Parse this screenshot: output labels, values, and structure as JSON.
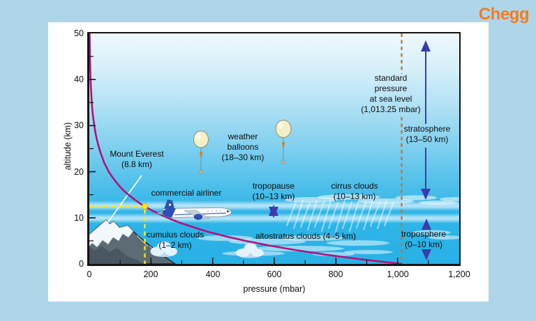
{
  "brand": {
    "logo_text": "Chegg",
    "logo_color": "#f47b20"
  },
  "axes": {
    "x_label": "pressure (mbar)",
    "y_label": "altitude (km)",
    "x_ticks": [
      "0",
      "200",
      "400",
      "600",
      "800",
      "1,000",
      "1,200"
    ],
    "y_ticks": [
      "50",
      "40",
      "30",
      "20",
      "10",
      "0"
    ]
  },
  "annotations": {
    "mount_everest": "Mount Everest\n(8.8 km)",
    "weather_balloons": "weather\nballoons\n(18–30 km)",
    "commercial_airliner": "commercial airliner",
    "tropopause": "tropopause\n(10–13 km)",
    "cirrus_clouds": "cirrus clouds\n(10–13 km)",
    "altostratus_clouds": "altostratus clouds (4–5 km)",
    "cumulus_clouds": "cumulus clouds\n(1–2 km)",
    "standard_pressure": "standard\npressure\nat sea level\n(1,013.25 mbar)",
    "stratosphere": "stratosphere\n(13–50 km)",
    "troposphere": "troposphere\n(0–10 km)"
  },
  "chart_data": {
    "type": "line",
    "xlabel": "pressure (mbar)",
    "ylabel": "altitude (km)",
    "xlim": [
      0,
      1200
    ],
    "ylim": [
      0,
      50
    ],
    "grid": false,
    "x_tick_values": [
      0,
      200,
      400,
      600,
      800,
      1000,
      1200
    ],
    "y_tick_values": [
      0,
      10,
      20,
      30,
      40,
      50
    ],
    "series": [
      {
        "name": "atmospheric pressure vs altitude",
        "color": "#b2117e",
        "points_format": "[altitude_km, pressure_mbar]",
        "points": [
          [
            0,
            1013.25
          ],
          [
            1,
            882
          ],
          [
            2,
            768
          ],
          [
            3,
            669
          ],
          [
            4,
            582
          ],
          [
            5,
            507
          ],
          [
            6,
            441
          ],
          [
            7,
            384
          ],
          [
            8,
            335
          ],
          [
            9,
            291
          ],
          [
            10,
            254
          ],
          [
            11,
            221
          ],
          [
            12,
            192
          ],
          [
            13,
            167
          ],
          [
            14,
            146
          ],
          [
            15,
            127
          ],
          [
            16,
            110
          ],
          [
            17,
            96
          ],
          [
            18,
            84
          ],
          [
            19,
            73
          ],
          [
            20,
            63
          ],
          [
            22,
            48
          ],
          [
            24,
            37
          ],
          [
            26,
            28
          ],
          [
            28,
            21
          ],
          [
            30,
            16
          ],
          [
            32,
            12
          ],
          [
            34,
            9
          ],
          [
            36,
            7
          ],
          [
            38,
            5.4
          ],
          [
            40,
            4.1
          ],
          [
            42,
            3.1
          ],
          [
            44,
            2.3
          ],
          [
            46,
            1.8
          ],
          [
            48,
            1.3
          ],
          [
            50,
            1
          ]
        ]
      }
    ],
    "reference_lines": [
      {
        "label": "standard pressure at sea level",
        "pressure_mbar": 1013.25,
        "style": "dashed",
        "color": "#c0763a"
      }
    ],
    "marked_point": {
      "label": "commercial airliner cruise",
      "pressure_mbar": 180,
      "altitude_km": 12.5,
      "color": "#ffe713"
    },
    "altitude_ranges": [
      {
        "label": "stratosphere",
        "from_km": 13,
        "to_km": 50
      },
      {
        "label": "troposphere",
        "from_km": 0,
        "to_km": 10
      },
      {
        "label": "tropopause",
        "from_km": 10,
        "to_km": 13
      },
      {
        "label": "weather balloons",
        "from_km": 18,
        "to_km": 30
      },
      {
        "label": "cirrus clouds",
        "from_km": 10,
        "to_km": 13
      },
      {
        "label": "altostratus clouds",
        "from_km": 4,
        "to_km": 5
      },
      {
        "label": "cumulus clouds",
        "from_km": 1,
        "to_km": 2
      },
      {
        "label": "Mount Everest",
        "altitude_km": 8.8
      }
    ]
  }
}
